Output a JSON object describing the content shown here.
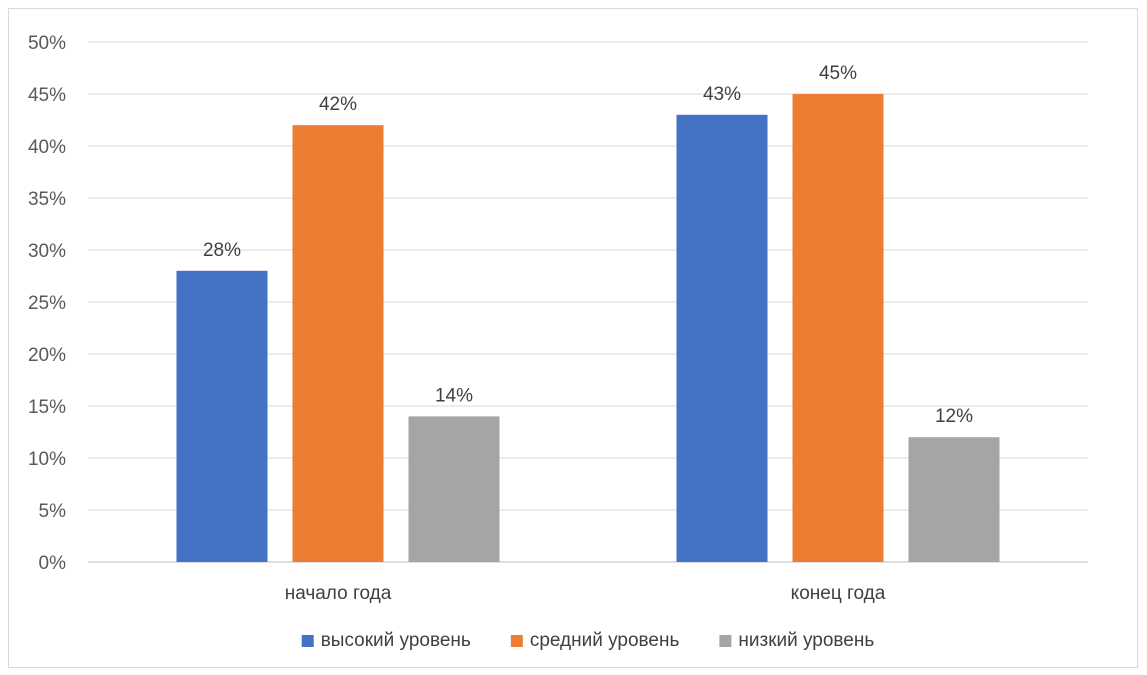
{
  "chart_data": {
    "type": "bar",
    "categories": [
      "начало года",
      "конец года"
    ],
    "series": [
      {
        "name": "высокий уровень",
        "values": [
          28,
          43
        ],
        "color": "#4472C4"
      },
      {
        "name": "средний уровень",
        "values": [
          42,
          45
        ],
        "color": "#ED7D31"
      },
      {
        "name": "низкий уровень",
        "values": [
          14,
          12
        ],
        "color": "#A5A5A5"
      }
    ],
    "value_format": "percent",
    "yticks": [
      "0%",
      "5%",
      "10%",
      "15%",
      "20%",
      "25%",
      "30%",
      "35%",
      "40%",
      "45%",
      "50%"
    ],
    "ylim": [
      0,
      50
    ],
    "grid": true,
    "legend_position": "bottom",
    "data_labels": [
      [
        "28%",
        "43%"
      ],
      [
        "42%",
        "45%"
      ],
      [
        "14%",
        "12%"
      ]
    ]
  }
}
